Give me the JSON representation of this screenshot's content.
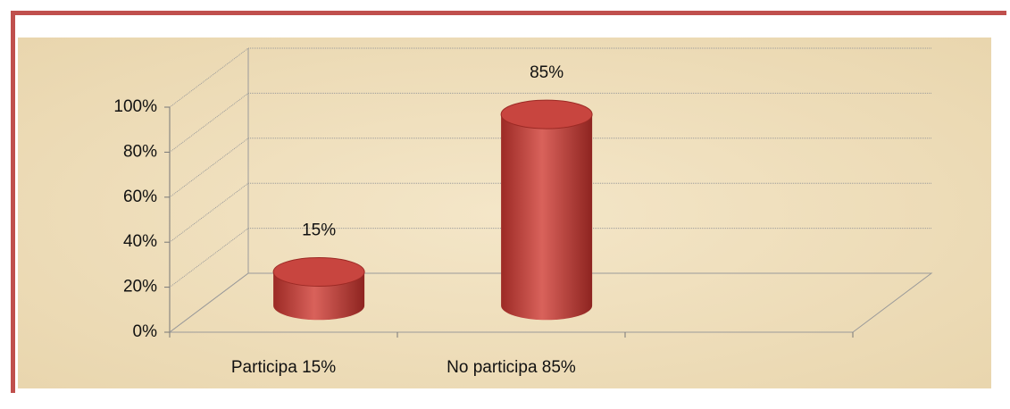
{
  "chart_data": {
    "type": "bar",
    "categories": [
      "Participa 15%",
      "No participa 85%",
      null
    ],
    "values": [
      15,
      85,
      null
    ],
    "value_labels": [
      "15%",
      "85%",
      null
    ],
    "color": "#c8453f",
    "ylim": [
      0,
      100
    ],
    "yticks": [
      {
        "value": 0,
        "label": "0%"
      },
      {
        "value": 20,
        "label": "20%"
      },
      {
        "value": 40,
        "label": "40%"
      },
      {
        "value": 60,
        "label": "60%"
      },
      {
        "value": 80,
        "label": "80%"
      },
      {
        "value": 100,
        "label": "100%"
      }
    ],
    "grid": true
  }
}
